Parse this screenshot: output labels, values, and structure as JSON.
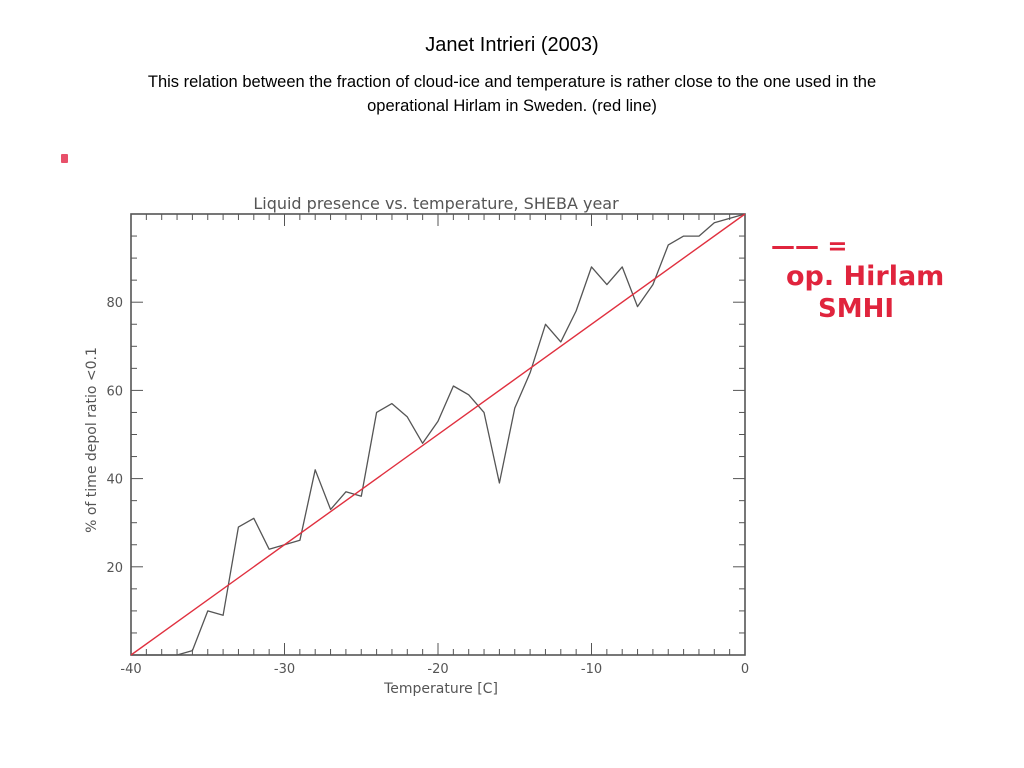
{
  "slide": {
    "title": "Janet Intrieri (2003)",
    "subtitle": "This relation between the fraction of cloud-ice and temperature is rather close to the one used in the operational Hirlam in Sweden. (red line)",
    "bullet_color": "#e8506a"
  },
  "chart_data": {
    "type": "line",
    "title": "Liquid presence vs. temperature, SHEBA year",
    "xlabel": "Temperature [C]",
    "ylabel": "% of time depol ratio <0.1",
    "xlim": [
      -40,
      0
    ],
    "ylim": [
      0,
      100
    ],
    "xticks": [
      -40,
      -30,
      -20,
      -10,
      0
    ],
    "xtick_labels": [
      "-40",
      "-30",
      "-20",
      "-10",
      "0"
    ],
    "yticks": [
      20,
      40,
      60,
      80
    ],
    "ytick_labels": [
      "20",
      "40",
      "60",
      "80"
    ],
    "grid": false,
    "series": [
      {
        "color": "#555555",
        "x": [
          -40,
          -37,
          -36,
          -35,
          -34,
          -33,
          -32,
          -31,
          -30,
          -29,
          -28,
          -27,
          -26,
          -25,
          -24,
          -23,
          -22,
          -21,
          -20,
          -19,
          -18,
          -17,
          -16,
          -15,
          -14,
          -13,
          -12,
          -11,
          -10,
          -9,
          -8,
          -7,
          -6,
          -5,
          -4,
          -3,
          -2,
          -1,
          0
        ],
        "y": [
          0,
          0,
          1,
          10,
          9,
          29,
          31,
          24,
          25,
          26,
          42,
          33,
          37,
          36,
          55,
          57,
          54,
          48,
          53,
          61,
          59,
          55,
          39,
          56,
          64,
          75,
          71,
          78,
          88,
          84,
          88,
          79,
          84,
          93,
          95,
          95,
          98,
          99,
          100
        ]
      },
      {
        "name": "op. Hirlam SMHI",
        "color": "#e0303f",
        "x": [
          -40,
          0
        ],
        "y": [
          0,
          100
        ]
      }
    ]
  },
  "annotation": {
    "line1": "—— =",
    "line2": "op. Hirlam",
    "line3": "SMHI",
    "color": "#e0243d"
  }
}
